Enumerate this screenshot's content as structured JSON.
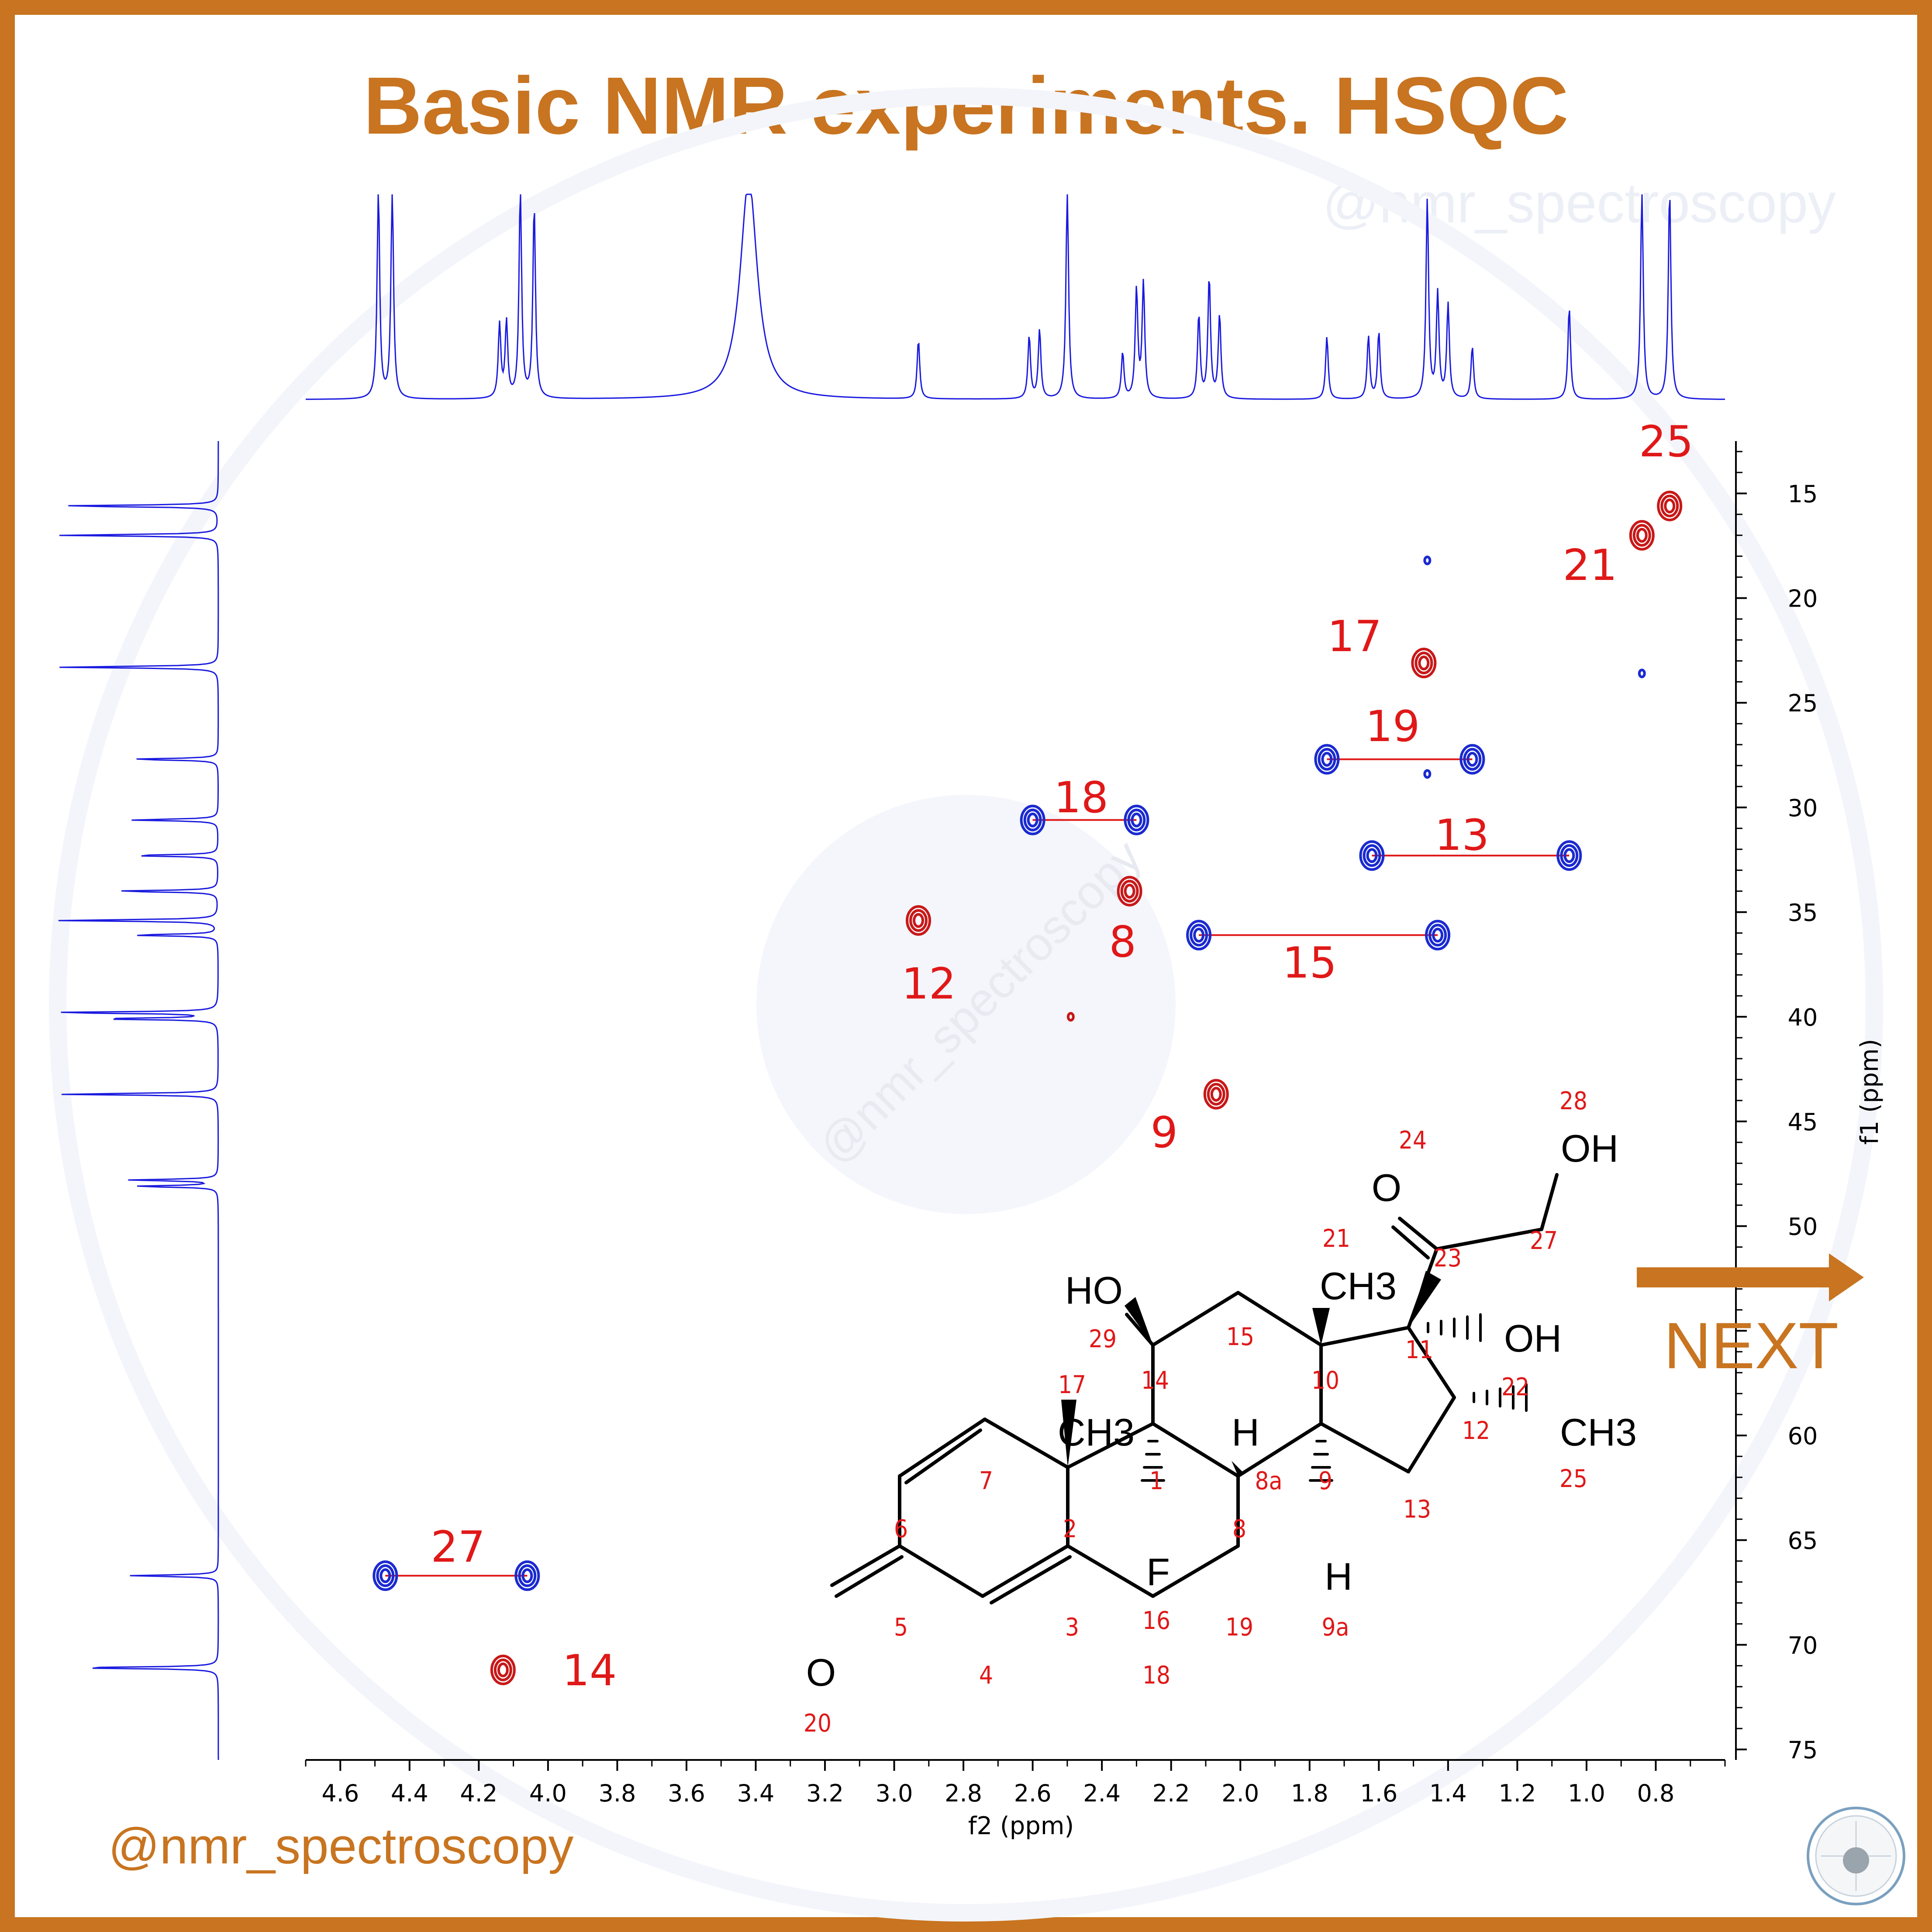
{
  "header": {
    "title": "Basic NMR experiments. HSQC"
  },
  "watermark": {
    "top": "@nmr_spectroscopy",
    "center": "@nmr_spectroscopy"
  },
  "footer": {
    "handle": "@nmr_spectroscopy",
    "next_label": "NEXT"
  },
  "colors": {
    "accent": "#c87420",
    "spectrum": "#1a1adf",
    "positive": "#c81818",
    "negative": "#1a2ad0",
    "label": "#e01818",
    "structure": "#000000"
  },
  "icons": {
    "next": "arrow-right-icon",
    "logo": "nmr-logo-icon"
  },
  "chart_data": {
    "type": "heatmap",
    "experiment": "HSQC",
    "xlabel": "f2 (ppm)",
    "ylabel": "f1 (ppm)",
    "xlim": [
      4.7,
      0.6
    ],
    "ylim": [
      12.5,
      75.5
    ],
    "x_ticks": [
      "4.6",
      "4.4",
      "4.2",
      "4.0",
      "3.8",
      "3.6",
      "3.4",
      "3.2",
      "3.0",
      "2.8",
      "2.6",
      "2.4",
      "2.2",
      "2.0",
      "1.8",
      "1.6",
      "1.4",
      "1.2",
      "1.0",
      "0.8"
    ],
    "y_ticks": [
      "15",
      "20",
      "25",
      "30",
      "35",
      "40",
      "45",
      "50",
      "55",
      "60",
      "65",
      "70",
      "75"
    ],
    "top_projection": "1H",
    "left_projection": "13C",
    "cross_peaks": [
      {
        "label": "25",
        "phase": "positive",
        "x": [
          0.76
        ],
        "y": 15.6
      },
      {
        "label": "21",
        "phase": "positive",
        "x": [
          0.84
        ],
        "y": 17.0
      },
      {
        "label": "17",
        "phase": "positive",
        "x": [
          1.47
        ],
        "y": 23.1
      },
      {
        "label": "19",
        "phase": "negative",
        "x": [
          1.75,
          1.33
        ],
        "y": 27.7
      },
      {
        "label": "18",
        "phase": "negative",
        "x": [
          2.6,
          2.3
        ],
        "y": 30.6
      },
      {
        "label": "13",
        "phase": "negative",
        "x": [
          1.62,
          1.05
        ],
        "y": 32.3
      },
      {
        "label": "8",
        "phase": "positive",
        "x": [
          2.32
        ],
        "y": 34.0
      },
      {
        "label": "12",
        "phase": "positive",
        "x": [
          2.93
        ],
        "y": 35.4
      },
      {
        "label": "15",
        "phase": "negative",
        "x": [
          2.12,
          1.43
        ],
        "y": 36.1
      },
      {
        "label": "",
        "phase": "positive",
        "x": [
          2.49
        ],
        "y": 40.0
      },
      {
        "label": "9",
        "phase": "positive",
        "x": [
          2.07
        ],
        "y": 43.7
      },
      {
        "label": "27",
        "phase": "negative",
        "x": [
          4.47,
          4.06
        ],
        "y": 66.7
      },
      {
        "label": "14",
        "phase": "positive",
        "x": [
          4.13
        ],
        "y": 71.2
      },
      {
        "label": "",
        "phase": "negative",
        "x": [
          1.46
        ],
        "y": 18.2
      },
      {
        "label": "",
        "phase": "negative",
        "x": [
          0.84
        ],
        "y": 23.6
      },
      {
        "label": "",
        "phase": "negative",
        "x": [
          1.46
        ],
        "y": 28.4
      }
    ],
    "proton_peaks": [
      {
        "shift": 4.49,
        "height": 1.0
      },
      {
        "shift": 4.45,
        "height": 1.0
      },
      {
        "shift": 4.14,
        "height": 0.35
      },
      {
        "shift": 4.12,
        "height": 0.36
      },
      {
        "shift": 4.08,
        "height": 1.0
      },
      {
        "shift": 4.04,
        "height": 0.92
      },
      {
        "shift": 3.42,
        "height": 1.05
      },
      {
        "shift": 2.93,
        "height": 0.28
      },
      {
        "shift": 2.61,
        "height": 0.3
      },
      {
        "shift": 2.58,
        "height": 0.33
      },
      {
        "shift": 2.5,
        "height": 1.0
      },
      {
        "shift": 2.34,
        "height": 0.22
      },
      {
        "shift": 2.3,
        "height": 0.52
      },
      {
        "shift": 2.28,
        "height": 0.55
      },
      {
        "shift": 2.12,
        "height": 0.4
      },
      {
        "shift": 2.09,
        "height": 0.58
      },
      {
        "shift": 2.06,
        "height": 0.4
      },
      {
        "shift": 1.75,
        "height": 0.3
      },
      {
        "shift": 1.63,
        "height": 0.3
      },
      {
        "shift": 1.6,
        "height": 0.32
      },
      {
        "shift": 1.46,
        "height": 0.95
      },
      {
        "shift": 1.43,
        "height": 0.5
      },
      {
        "shift": 1.4,
        "height": 0.45
      },
      {
        "shift": 1.33,
        "height": 0.25
      },
      {
        "shift": 1.05,
        "height": 0.44
      },
      {
        "shift": 0.84,
        "height": 1.0
      },
      {
        "shift": 0.76,
        "height": 1.0
      }
    ],
    "carbon_peaks": [
      {
        "shift": 15.6,
        "height": 1.0
      },
      {
        "shift": 17.0,
        "height": 1.0
      },
      {
        "shift": 23.3,
        "height": 1.0
      },
      {
        "shift": 27.7,
        "height": 0.55
      },
      {
        "shift": 30.6,
        "height": 0.55
      },
      {
        "shift": 32.3,
        "height": 0.55
      },
      {
        "shift": 34.0,
        "height": 0.65
      },
      {
        "shift": 35.4,
        "height": 1.0
      },
      {
        "shift": 36.1,
        "height": 0.55
      },
      {
        "shift": 39.8,
        "height": 1.05
      },
      {
        "shift": 40.1,
        "height": 0.75
      },
      {
        "shift": 43.7,
        "height": 1.0
      },
      {
        "shift": 47.8,
        "height": 0.55
      },
      {
        "shift": 48.1,
        "height": 0.52
      },
      {
        "shift": 66.7,
        "height": 0.55
      },
      {
        "shift": 71.1,
        "height": 0.92
      }
    ]
  },
  "structure": {
    "atoms": {
      "O_carbonyl": "O",
      "O_acid": "O",
      "OH_acid": "OH",
      "HO_14": "HO",
      "OH_11": "OH",
      "CH3_10": "CH3",
      "CH3_2": "CH3",
      "CH3_12": "CH3",
      "F": "F",
      "H_8a": "H",
      "H_9a": "H"
    },
    "numbers": [
      "1",
      "2",
      "3",
      "4",
      "5",
      "6",
      "7",
      "8",
      "8a",
      "9",
      "9a",
      "10",
      "11",
      "12",
      "13",
      "14",
      "15",
      "16",
      "17",
      "18",
      "19",
      "20",
      "21",
      "22",
      "23",
      "24",
      "25",
      "27",
      "28",
      "29"
    ]
  }
}
